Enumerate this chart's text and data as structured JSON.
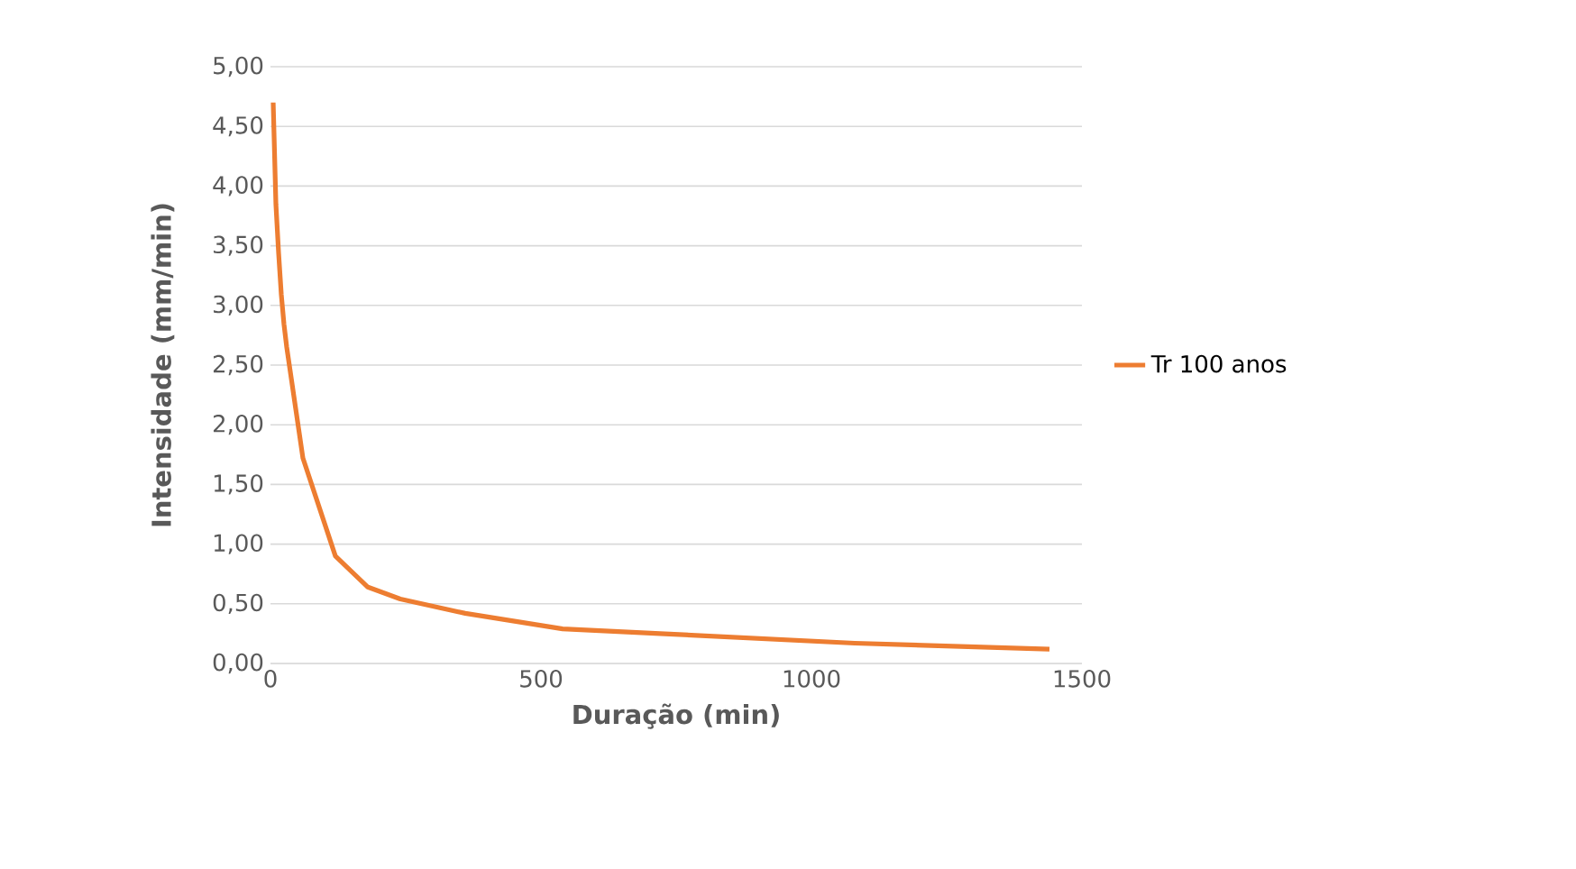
{
  "chart_data": {
    "type": "line",
    "xlabel": "Duração (min)",
    "ylabel": "Intensidade (mm/min)",
    "xlim": [
      0,
      1500
    ],
    "ylim": [
      0,
      5
    ],
    "xticks": [
      0,
      500,
      1000,
      1500
    ],
    "yticks": [
      {
        "value": 0,
        "label": "0,00"
      },
      {
        "value": 0.5,
        "label": "0,50"
      },
      {
        "value": 1,
        "label": "1,00"
      },
      {
        "value": 1.5,
        "label": "1,50"
      },
      {
        "value": 2,
        "label": "2,00"
      },
      {
        "value": 2.5,
        "label": "2,50"
      },
      {
        "value": 3,
        "label": "3,00"
      },
      {
        "value": 3.5,
        "label": "3,50"
      },
      {
        "value": 4,
        "label": "4,00"
      },
      {
        "value": 4.5,
        "label": "4,50"
      },
      {
        "value": 5,
        "label": "5,00"
      }
    ],
    "grid": "y",
    "legend": "right",
    "marker": "none",
    "line_style": "solid",
    "series": [
      {
        "name": "Tr 100 anos",
        "color": "#ed7d31",
        "x": [
          5,
          10,
          15,
          20,
          25,
          30,
          60,
          120,
          180,
          240,
          360,
          540,
          720,
          1080,
          1440
        ],
        "values": [
          4.7,
          3.85,
          3.44,
          3.09,
          2.84,
          2.65,
          1.72,
          0.9,
          0.64,
          0.54,
          0.42,
          0.29,
          0.25,
          0.17,
          0.12
        ]
      }
    ]
  }
}
